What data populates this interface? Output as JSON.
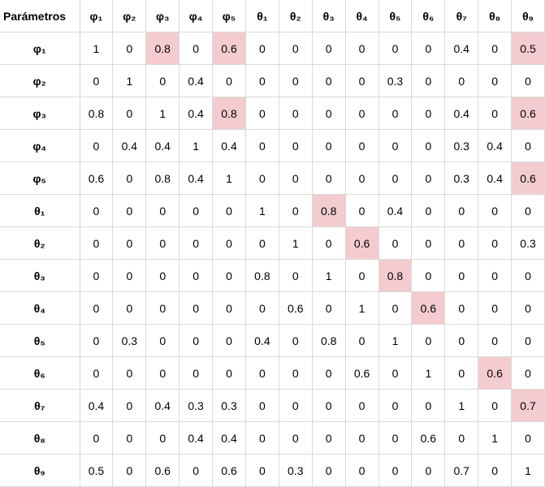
{
  "sheet": {
    "corner_label": "Parámetros",
    "columns": [
      "φ₁",
      "φ₂",
      "φ₃",
      "φ₄",
      "φ₅",
      "θ₁",
      "θ₂",
      "θ₃",
      "θ₄",
      "θ₅",
      "θ₆",
      "θ₇",
      "θ₈",
      "θ₉"
    ],
    "highlight_color": "#f4ccd0",
    "rows": [
      {
        "label": "φ₁",
        "values": [
          "1",
          "0",
          "0.8",
          "0",
          "0.6",
          "0",
          "0",
          "0",
          "0",
          "0",
          "0",
          "0.4",
          "0",
          "0.5"
        ],
        "highlights": [
          2,
          4,
          13
        ]
      },
      {
        "label": "φ₂",
        "values": [
          "0",
          "1",
          "0",
          "0.4",
          "0",
          "0",
          "0",
          "0",
          "0",
          "0.3",
          "0",
          "0",
          "0",
          "0"
        ],
        "highlights": []
      },
      {
        "label": "φ₃",
        "values": [
          "0.8",
          "0",
          "1",
          "0.4",
          "0.8",
          "0",
          "0",
          "0",
          "0",
          "0",
          "0",
          "0.4",
          "0",
          "0.6"
        ],
        "highlights": [
          4,
          13
        ]
      },
      {
        "label": "φ₄",
        "values": [
          "0",
          "0.4",
          "0.4",
          "1",
          "0.4",
          "0",
          "0",
          "0",
          "0",
          "0",
          "0",
          "0.3",
          "0.4",
          "0"
        ],
        "highlights": []
      },
      {
        "label": "φ₅",
        "values": [
          "0.6",
          "0",
          "0.8",
          "0.4",
          "1",
          "0",
          "0",
          "0",
          "0",
          "0",
          "0",
          "0.3",
          "0.4",
          "0.6"
        ],
        "highlights": [
          13
        ]
      },
      {
        "label": "θ₁",
        "values": [
          "0",
          "0",
          "0",
          "0",
          "0",
          "1",
          "0",
          "0.8",
          "0",
          "0.4",
          "0",
          "0",
          "0",
          "0"
        ],
        "highlights": [
          7
        ]
      },
      {
        "label": "θ₂",
        "values": [
          "0",
          "0",
          "0",
          "0",
          "0",
          "0",
          "1",
          "0",
          "0.6",
          "0",
          "0",
          "0",
          "0",
          "0.3"
        ],
        "highlights": [
          8
        ]
      },
      {
        "label": "θ₃",
        "values": [
          "0",
          "0",
          "0",
          "0",
          "0",
          "0.8",
          "0",
          "1",
          "0",
          "0.8",
          "0",
          "0",
          "0",
          "0"
        ],
        "highlights": [
          9
        ]
      },
      {
        "label": "θ₄",
        "values": [
          "0",
          "0",
          "0",
          "0",
          "0",
          "0",
          "0.6",
          "0",
          "1",
          "0",
          "0.6",
          "0",
          "0",
          "0"
        ],
        "highlights": [
          10
        ]
      },
      {
        "label": "θ₅",
        "values": [
          "0",
          "0.3",
          "0",
          "0",
          "0",
          "0.4",
          "0",
          "0.8",
          "0",
          "1",
          "0",
          "0",
          "0",
          "0"
        ],
        "highlights": []
      },
      {
        "label": "θ₆",
        "values": [
          "0",
          "0",
          "0",
          "0",
          "0",
          "0",
          "0",
          "0",
          "0.6",
          "0",
          "1",
          "0",
          "0.6",
          "0"
        ],
        "highlights": [
          12
        ]
      },
      {
        "label": "θ₇",
        "values": [
          "0.4",
          "0",
          "0.4",
          "0.3",
          "0.3",
          "0",
          "0",
          "0",
          "0",
          "0",
          "0",
          "1",
          "0",
          "0.7"
        ],
        "highlights": [
          13
        ]
      },
      {
        "label": "θ₈",
        "values": [
          "0",
          "0",
          "0",
          "0.4",
          "0.4",
          "0",
          "0",
          "0",
          "0",
          "0",
          "0.6",
          "0",
          "1",
          "0"
        ],
        "highlights": []
      },
      {
        "label": "θ₉",
        "values": [
          "0.5",
          "0",
          "0.6",
          "0",
          "0.6",
          "0",
          "0.3",
          "0",
          "0",
          "0",
          "0",
          "0.7",
          "0",
          "1"
        ],
        "highlights": []
      }
    ]
  }
}
